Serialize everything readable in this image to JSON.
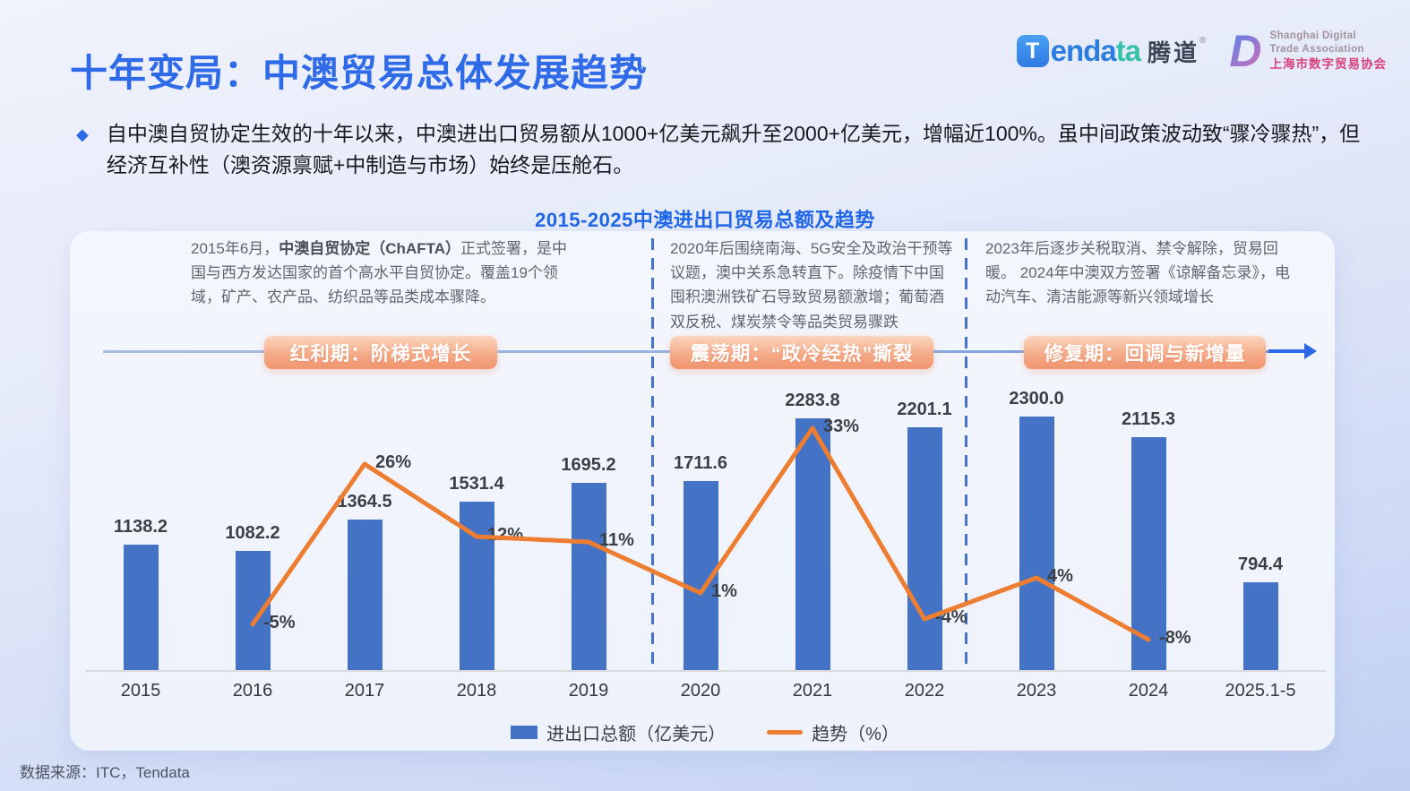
{
  "header": {
    "title": "十年变局：中澳贸易总体发展趋势",
    "logos": {
      "tendata": {
        "mark": "T",
        "word_blue": "enda",
        "word_teal": "ta",
        "cn": "腾道",
        "reg": "®"
      },
      "sdta": {
        "monogram": "D",
        "en1": "Shanghai Digital",
        "en2": "Trade Association",
        "cn": "上海市数字贸易协会"
      }
    }
  },
  "intro": {
    "bullet_glyph": "◆",
    "text": "自中澳自贸协定生效的十年以来，中澳进出口贸易额从1000+亿美元飙升至2000+亿美元，增幅近100%。虽中间政策波动致“骤冷骤热”，但经济互补性（澳资源禀赋+中制造与市场）始终是压舱石。"
  },
  "chart": {
    "title": "2015-2025中澳进出口贸易总额及趋势",
    "annotations": [
      {
        "pre": "2015年6月，",
        "bold": "中澳自贸协定（ChAFTA）",
        "post": "正式签署，是中国与西方发达国家的首个高水平自贸协定。覆盖19个领域，矿产、农产品、纺织品等品类成本骤降。"
      },
      {
        "text": "2020年后围绕南海、5G安全及政治干预等议题，澳中关系急转直下。除疫情下中国囤积澳洲铁矿石导致贸易额激增；葡萄酒双反税、煤炭禁令等品类贸易骤跌"
      },
      {
        "text": "2023年后逐步关税取消、禁令解除，贸易回暖。 2024年中澳双方签署《谅解备忘录》，电动汽车、清洁能源等新兴领域增长"
      }
    ],
    "phases": [
      "红利期：阶梯式增长",
      "震荡期：“政冷经热”撕裂",
      "修复期：回调与新增量"
    ]
  },
  "chart_data": {
    "type": "bar",
    "title": "2015-2025中澳进出口贸易总额及趋势",
    "categories": [
      "2015",
      "2016",
      "2017",
      "2018",
      "2019",
      "2020",
      "2021",
      "2022",
      "2023",
      "2024",
      "2025.1-5"
    ],
    "series": [
      {
        "name": "进出口总额（亿美元）",
        "type": "bar",
        "color": "#4472c4",
        "values": [
          1138.2,
          1082.2,
          1364.5,
          1531.4,
          1695.2,
          1711.6,
          2283.8,
          2201.1,
          2300.0,
          2115.3,
          794.4
        ]
      },
      {
        "name": "趋势（%）",
        "type": "line",
        "color": "#ed7d31",
        "x": [
          "2016",
          "2017",
          "2018",
          "2019",
          "2020",
          "2021",
          "2022",
          "2023",
          "2024"
        ],
        "values": [
          -5,
          26,
          12,
          11,
          1,
          33,
          -4,
          4,
          -8
        ],
        "labels": [
          "-5%",
          "26%",
          "12%",
          "11%",
          "1%",
          "33%",
          "-4%",
          "4%",
          "-8%"
        ]
      }
    ],
    "xlabel": "",
    "ylabel": "",
    "grid": false,
    "legend_position": "bottom"
  },
  "legend": {
    "bar": "进出口总额（亿美元）",
    "line": "趋势（%）"
  },
  "footer": {
    "source": "数据来源：ITC，Tendata"
  },
  "colors": {
    "accent_blue": "#2e6ae8",
    "bar": "#4472c4",
    "line": "#ed7d31",
    "badge_from": "#fbd6bf",
    "badge_to": "#f0946e",
    "dashed_separator": "#4673c9"
  }
}
